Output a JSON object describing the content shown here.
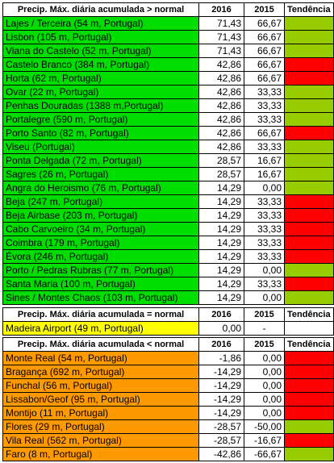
{
  "colors": {
    "green_station": "#00dd00",
    "yellow_station": "#ffff00",
    "orange_station": "#ff9900",
    "trend_up": "#99cc00",
    "trend_down": "#ff0000"
  },
  "sections": [
    {
      "header": "Precip. Máx. diária acumulada > normal",
      "col_2016": "2016",
      "col_2015": "2015",
      "col_trend": "Tendência",
      "station_color": "#00dd00",
      "rows": [
        {
          "station": "Lajes / Terceira (54 m, Portugal)",
          "v2016": "71,43",
          "v2015": "66,67",
          "trend": "up"
        },
        {
          "station": "Lisbon (105 m, Portugal)",
          "v2016": "71,43",
          "v2015": "66,67",
          "trend": "up"
        },
        {
          "station": "Viana do Castelo (52 m, Portugal)",
          "v2016": "71,43",
          "v2015": "66,67",
          "trend": "up"
        },
        {
          "station": "Castelo Branco (384 m, Portugal)",
          "v2016": "42,86",
          "v2015": "66,67",
          "trend": "down"
        },
        {
          "station": "Horta (62 m, Portugal)",
          "v2016": "42,86",
          "v2015": "66,67",
          "trend": "down"
        },
        {
          "station": "Ovar (22 m, Portugal)",
          "v2016": "42,86",
          "v2015": "33,33",
          "trend": "up"
        },
        {
          "station": "Penhas Douradas (1388 m,Portugal)",
          "v2016": "42,86",
          "v2015": "33,33",
          "trend": "up"
        },
        {
          "station": "Portalegre (590 m, Portugal)",
          "v2016": "42,86",
          "v2015": "33,33",
          "trend": "up"
        },
        {
          "station": "Porto Santo (82 m, Portugal)",
          "v2016": "42,86",
          "v2015": "66,67",
          "trend": "down"
        },
        {
          "station": "Viseu (Portugal)",
          "v2016": "42,86",
          "v2015": "33,33",
          "trend": "up"
        },
        {
          "station": "Ponta Delgada (72 m, Portugal)",
          "v2016": "28,57",
          "v2015": "16,67",
          "trend": "up"
        },
        {
          "station": "Sagres (26 m, Portugal)",
          "v2016": "28,57",
          "v2015": "16,67",
          "trend": "up"
        },
        {
          "station": "Angra do Heroismo (76 m, Portugal)",
          "v2016": "14,29",
          "v2015": "0,00",
          "trend": "up"
        },
        {
          "station": "Beja (247 m, Portugal)",
          "v2016": "14,29",
          "v2015": "33,33",
          "trend": "down"
        },
        {
          "station": "Beja Airbase (203 m, Portugal)",
          "v2016": "14,29",
          "v2015": "33,33",
          "trend": "down"
        },
        {
          "station": "Cabo Carvoeiro (34 m, Portugal)",
          "v2016": "14,29",
          "v2015": "33,33",
          "trend": "down"
        },
        {
          "station": "Coimbra (179 m, Portugal)",
          "v2016": "14,29",
          "v2015": "33,33",
          "trend": "down"
        },
        {
          "station": "Évora (246 m, Portugal)",
          "v2016": "14,29",
          "v2015": "33,33",
          "trend": "down"
        },
        {
          "station": "Porto / Pedras Rubras (77 m, Portugal)",
          "v2016": "14,29",
          "v2015": "0,00",
          "trend": "up"
        },
        {
          "station": "Santa Maria (100 m, Portugal)",
          "v2016": "14,29",
          "v2015": "33,33",
          "trend": "down"
        },
        {
          "station": "Sines / Montes Chaos (103 m, Portugal)",
          "v2016": "14,29",
          "v2015": "0,00",
          "trend": "up"
        }
      ]
    },
    {
      "header": "Precip. Máx. diária acumulada = normal",
      "col_2016": "2016",
      "col_2015": "2015",
      "col_trend": "Tendência",
      "station_color": "#ffff00",
      "rows": [
        {
          "station": "Madeira Airport (49 m, Portugal)",
          "v2016": "0,00",
          "v2015": "-",
          "trend": "none"
        }
      ]
    },
    {
      "header": "Precip. Máx. diária acumulada < normal",
      "col_2016": "2016",
      "col_2015": "2015",
      "col_trend": "Tendência",
      "station_color": "#ff9900",
      "rows": [
        {
          "station": "Monte Real (54 m, Portugal)",
          "v2016": "-1,86",
          "v2015": "0,00",
          "trend": "down"
        },
        {
          "station": "Bragança (692 m, Portugal)",
          "v2016": "-14,29",
          "v2015": "0,00",
          "trend": "down"
        },
        {
          "station": "Funchal (56 m, Portugal)",
          "v2016": "-14,29",
          "v2015": "0,00",
          "trend": "down"
        },
        {
          "station": "Lissabon/Geof (95 m, Portugal)",
          "v2016": "-14,29",
          "v2015": "0,00",
          "trend": "down"
        },
        {
          "station": "Montijo (11 m, Portugal)",
          "v2016": "-14,29",
          "v2015": "0,00",
          "trend": "down"
        },
        {
          "station": "Flores (29 m, Portugal)",
          "v2016": "-28,57",
          "v2015": "-50,00",
          "trend": "up"
        },
        {
          "station": "Vila Real (562 m, Portugal)",
          "v2016": "-28,57",
          "v2015": "-16,67",
          "trend": "down"
        },
        {
          "station": "Faro (8 m, Portugal)",
          "v2016": "-42,86",
          "v2015": "-66,67",
          "trend": "up"
        }
      ]
    }
  ]
}
